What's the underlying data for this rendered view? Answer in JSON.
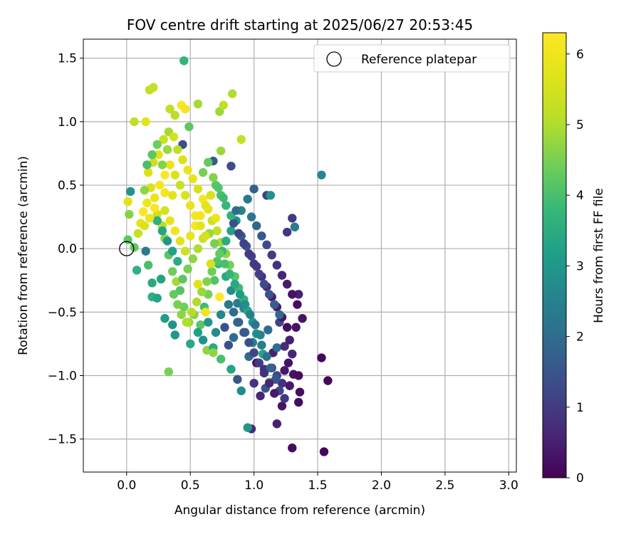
{
  "chart_data": {
    "type": "scatter",
    "title": "FOV centre drift starting at 2025/06/27 20:53:45",
    "xlabel": "Angular distance from reference (arcmin)",
    "ylabel": "Rotation from reference (arcmin)",
    "xlim": [
      -0.34,
      3.06
    ],
    "ylim": [
      -1.76,
      1.65
    ],
    "xticks": [
      0.0,
      0.5,
      1.0,
      1.5,
      2.0,
      2.5,
      3.0
    ],
    "xtick_labels": [
      "0.0",
      "0.5",
      "1.0",
      "1.5",
      "2.0",
      "2.5",
      "3.0"
    ],
    "yticks": [
      -1.5,
      -1.0,
      -0.5,
      0.0,
      0.5,
      1.0,
      1.5
    ],
    "ytick_labels": [
      "−1.5",
      "−1.0",
      "−0.5",
      "0.0",
      "0.5",
      "1.0",
      "1.5"
    ],
    "grid": true,
    "legend": {
      "position": "top-right",
      "entries": [
        "Reference platepar"
      ]
    },
    "reference_point": {
      "x": 0.0,
      "y": 0.0
    },
    "colorbar": {
      "label": "Hours from first FF file",
      "range": [
        0,
        6.3
      ],
      "ticks": [
        0,
        1,
        2,
        3,
        4,
        5,
        6
      ],
      "tick_labels": [
        "0",
        "1",
        "2",
        "3",
        "4",
        "5",
        "6"
      ],
      "colormap": "viridis"
    },
    "points": [
      [
        0.45,
        1.48,
        3.7
      ],
      [
        1.53,
        0.58,
        2.6
      ],
      [
        1.3,
        -1.57,
        0.2
      ],
      [
        1.55,
        -1.6,
        0.1
      ],
      [
        1.58,
        -1.04,
        0.1
      ],
      [
        1.53,
        -0.86,
        0.1
      ],
      [
        1.38,
        -0.55,
        0.3
      ],
      [
        1.35,
        -0.36,
        0.5
      ],
      [
        1.32,
        0.17,
        2.4
      ],
      [
        1.3,
        0.24,
        1.0
      ],
      [
        1.26,
        0.13,
        0.9
      ],
      [
        1.1,
        0.42,
        1.1
      ],
      [
        1.13,
        0.42,
        2.9
      ],
      [
        1.0,
        0.47,
        1.7
      ],
      [
        0.95,
        0.39,
        2.3
      ],
      [
        1.22,
        -1.24,
        0.3
      ],
      [
        1.18,
        -1.38,
        0.5
      ],
      [
        0.98,
        -1.42,
        0.7
      ],
      [
        0.95,
        -1.41,
        3.0
      ],
      [
        1.36,
        -1.13,
        0.2
      ],
      [
        1.35,
        -1.21,
        0.2
      ],
      [
        0.33,
        -0.97,
        4.5
      ],
      [
        0.38,
        -0.68,
        3.0
      ],
      [
        0.36,
        -0.6,
        2.9
      ],
      [
        0.9,
        -1.12,
        2.7
      ],
      [
        0.87,
        -1.03,
        1.5
      ],
      [
        0.82,
        -0.95,
        3.3
      ],
      [
        1.12,
        -1.05,
        4.6
      ],
      [
        0.15,
        1.0,
        5.7
      ],
      [
        0.18,
        1.25,
        5.2
      ],
      [
        0.21,
        1.27,
        5.3
      ],
      [
        0.34,
        1.1,
        5.2
      ],
      [
        0.43,
        1.13,
        6.2
      ],
      [
        0.46,
        1.1,
        6.1
      ],
      [
        0.38,
        1.05,
        5.1
      ],
      [
        0.56,
        1.14,
        4.9
      ],
      [
        0.73,
        1.08,
        4.8
      ],
      [
        0.76,
        1.13,
        5.2
      ],
      [
        0.83,
        1.22,
        5.0
      ],
      [
        0.9,
        0.86,
        5.3
      ],
      [
        0.82,
        0.65,
        1.3
      ],
      [
        0.68,
        0.69,
        1.6
      ],
      [
        0.74,
        0.77,
        4.8
      ],
      [
        0.49,
        0.96,
        4.2
      ],
      [
        0.44,
        0.82,
        1.4
      ],
      [
        0.06,
        1.0,
        5.2
      ],
      [
        0.03,
        0.45,
        2.9
      ],
      [
        0.01,
        0.37,
        5.7
      ],
      [
        0.02,
        0.27,
        4.6
      ],
      [
        0.01,
        0.07,
        4.2
      ],
      [
        0.06,
        0.01,
        4.3
      ],
      [
        0.08,
        -0.17,
        3.6
      ],
      [
        0.15,
        -0.02,
        2.3
      ],
      [
        0.17,
        -0.13,
        4.0
      ],
      [
        0.2,
        -0.27,
        3.4
      ],
      [
        0.2,
        -0.38,
        3.6
      ],
      [
        0.24,
        -0.39,
        3.3
      ],
      [
        0.27,
        -0.24,
        3.3
      ],
      [
        0.3,
        -0.55,
        3.1
      ],
      [
        0.5,
        -0.75,
        3.4
      ],
      [
        0.63,
        -0.8,
        4.7
      ],
      [
        0.68,
        -0.78,
        3.5
      ],
      [
        0.68,
        -0.82,
        4.7
      ],
      [
        0.74,
        -0.87,
        4.0
      ],
      [
        0.77,
        -0.62,
        1.4
      ],
      [
        0.8,
        -0.76,
        1.4
      ],
      [
        0.84,
        -0.7,
        2.0
      ],
      [
        0.87,
        -0.58,
        2.1
      ],
      [
        0.92,
        -0.47,
        2.6
      ],
      [
        0.96,
        -0.85,
        1.9
      ],
      [
        1.02,
        -0.9,
        0.3
      ],
      [
        1.05,
        -0.68,
        2.5
      ],
      [
        1.08,
        -0.95,
        0.8
      ],
      [
        1.11,
        -0.64,
        2.0
      ],
      [
        1.15,
        -0.82,
        0.5
      ],
      [
        1.18,
        -0.78,
        2.0
      ],
      [
        1.2,
        -0.58,
        1.2
      ],
      [
        1.24,
        -0.77,
        0.7
      ],
      [
        1.28,
        -0.72,
        0.5
      ],
      [
        1.33,
        -0.62,
        0.3
      ],
      [
        1.3,
        -0.83,
        0.6
      ],
      [
        1.27,
        -0.9,
        0.3
      ],
      [
        1.24,
        -0.96,
        0.4
      ],
      [
        1.31,
        -0.99,
        0.3
      ],
      [
        1.35,
        -1.0,
        0.2
      ],
      [
        1.28,
        -1.08,
        0.4
      ],
      [
        1.22,
        -1.06,
        0.8
      ],
      [
        1.18,
        -1.0,
        1.2
      ],
      [
        1.14,
        -0.94,
        1.0
      ],
      [
        1.09,
        -1.1,
        1.5
      ],
      [
        1.05,
        -1.16,
        0.6
      ],
      [
        1.0,
        -1.06,
        0.9
      ],
      [
        1.07,
        -0.83,
        3.3
      ],
      [
        0.99,
        -0.74,
        2.4
      ],
      [
        0.93,
        -0.66,
        1.9
      ],
      [
        0.87,
        -0.43,
        2.4
      ],
      [
        0.82,
        -0.33,
        2.8
      ],
      [
        0.78,
        -0.22,
        3.4
      ],
      [
        0.72,
        -0.12,
        3.7
      ],
      [
        0.69,
        -0.25,
        4.1
      ],
      [
        0.64,
        -0.36,
        4.5
      ],
      [
        0.61,
        -0.46,
        3.9
      ],
      [
        0.58,
        -0.6,
        4.2
      ],
      [
        0.53,
        -0.52,
        4.6
      ],
      [
        0.49,
        -0.58,
        4.8
      ],
      [
        0.45,
        -0.46,
        4.4
      ],
      [
        0.42,
        -0.33,
        4.1
      ],
      [
        0.39,
        -0.26,
        4.9
      ],
      [
        0.36,
        -0.18,
        4.4
      ],
      [
        0.33,
        -0.05,
        4.2
      ],
      [
        0.3,
        0.08,
        4.6
      ],
      [
        0.28,
        0.18,
        5.1
      ],
      [
        0.24,
        0.27,
        5.4
      ],
      [
        0.22,
        0.4,
        5.9
      ],
      [
        0.19,
        0.48,
        5.6
      ],
      [
        0.16,
        0.36,
        6.0
      ],
      [
        0.13,
        0.29,
        6.2
      ],
      [
        0.11,
        0.2,
        5.8
      ],
      [
        0.09,
        0.12,
        5.3
      ],
      [
        0.14,
        0.46,
        4.7
      ],
      [
        0.17,
        0.6,
        5.6
      ],
      [
        0.21,
        0.68,
        5.4
      ],
      [
        0.25,
        0.74,
        5.7
      ],
      [
        0.29,
        0.86,
        5.3
      ],
      [
        0.33,
        0.92,
        4.9
      ],
      [
        0.37,
        0.88,
        5.5
      ],
      [
        0.4,
        0.78,
        5.2
      ],
      [
        0.44,
        0.7,
        5.6
      ],
      [
        0.48,
        0.62,
        5.9
      ],
      [
        0.52,
        0.55,
        5.8
      ],
      [
        0.56,
        0.47,
        5.5
      ],
      [
        0.6,
        0.39,
        6.1
      ],
      [
        0.64,
        0.31,
        5.7
      ],
      [
        0.67,
        0.22,
        5.4
      ],
      [
        0.71,
        0.14,
        5.2
      ],
      [
        0.74,
        0.05,
        4.9
      ],
      [
        0.78,
        -0.04,
        4.7
      ],
      [
        0.81,
        -0.13,
        4.5
      ],
      [
        0.85,
        -0.22,
        4.2
      ],
      [
        0.88,
        -0.31,
        3.9
      ],
      [
        0.92,
        -0.4,
        3.6
      ],
      [
        0.95,
        -0.49,
        3.3
      ],
      [
        0.99,
        -0.58,
        3.0
      ],
      [
        1.02,
        -0.67,
        2.7
      ],
      [
        1.06,
        -0.76,
        2.4
      ],
      [
        1.1,
        -0.85,
        2.1
      ],
      [
        1.13,
        -0.94,
        1.8
      ],
      [
        1.17,
        -1.03,
        1.5
      ],
      [
        1.2,
        -1.12,
        1.2
      ],
      [
        1.24,
        -1.18,
        0.9
      ],
      [
        0.98,
        0.25,
        2.2
      ],
      [
        1.02,
        0.18,
        1.9
      ],
      [
        1.06,
        0.1,
        1.6
      ],
      [
        1.1,
        0.03,
        1.3
      ],
      [
        1.14,
        -0.05,
        1.0
      ],
      [
        1.18,
        -0.13,
        0.8
      ],
      [
        1.22,
        -0.21,
        0.6
      ],
      [
        1.26,
        -0.28,
        0.4
      ],
      [
        1.3,
        -0.36,
        0.3
      ],
      [
        1.34,
        -0.44,
        0.2
      ],
      [
        0.9,
        0.3,
        2.6
      ],
      [
        0.86,
        0.22,
        2.9
      ],
      [
        0.82,
        0.14,
        3.2
      ],
      [
        0.78,
        0.06,
        3.5
      ],
      [
        0.75,
        -0.02,
        3.8
      ],
      [
        0.71,
        -0.1,
        4.1
      ],
      [
        0.67,
        -0.18,
        4.4
      ],
      [
        0.63,
        -0.26,
        4.6
      ],
      [
        0.59,
        -0.34,
        4.8
      ],
      [
        0.55,
        -0.42,
        5.0
      ],
      [
        0.51,
        -0.5,
        5.1
      ],
      [
        0.47,
        -0.58,
        5.0
      ],
      [
        0.43,
        -0.52,
        4.7
      ],
      [
        0.4,
        -0.44,
        4.5
      ],
      [
        0.37,
        -0.36,
        4.3
      ],
      [
        0.6,
        0.08,
        5.3
      ],
      [
        0.56,
        0.0,
        5.0
      ],
      [
        0.52,
        -0.08,
        4.7
      ],
      [
        0.48,
        -0.16,
        4.5
      ],
      [
        0.44,
        -0.24,
        4.2
      ],
      [
        0.65,
        0.12,
        4.8
      ],
      [
        0.69,
        0.04,
        4.5
      ],
      [
        0.73,
        -0.04,
        4.3
      ],
      [
        0.77,
        -0.12,
        4.0
      ],
      [
        0.81,
        -0.2,
        3.7
      ],
      [
        0.85,
        -0.28,
        3.4
      ],
      [
        0.89,
        -0.36,
        3.1
      ],
      [
        0.93,
        -0.44,
        2.8
      ],
      [
        0.97,
        -0.52,
        2.5
      ],
      [
        1.01,
        -0.6,
        2.2
      ],
      [
        0.9,
        0.1,
        1.6
      ],
      [
        0.94,
        0.02,
        1.4
      ],
      [
        0.98,
        -0.06,
        1.2
      ],
      [
        1.02,
        -0.14,
        1.0
      ],
      [
        1.06,
        -0.22,
        0.8
      ],
      [
        1.1,
        -0.3,
        0.7
      ],
      [
        1.14,
        -0.38,
        0.5
      ],
      [
        1.18,
        -0.46,
        0.4
      ],
      [
        1.22,
        -0.54,
        0.3
      ],
      [
        1.26,
        -0.62,
        0.2
      ],
      [
        0.84,
        0.2,
        1.4
      ],
      [
        0.88,
        0.12,
        1.2
      ],
      [
        0.92,
        0.04,
        1.1
      ],
      [
        0.96,
        -0.04,
        1.0
      ],
      [
        1.0,
        -0.12,
        0.9
      ],
      [
        1.04,
        -0.2,
        1.1
      ],
      [
        1.08,
        -0.28,
        1.3
      ],
      [
        1.12,
        -0.36,
        1.5
      ],
      [
        1.16,
        -0.44,
        1.7
      ],
      [
        1.2,
        -0.52,
        1.9
      ],
      [
        0.3,
        0.3,
        5.5
      ],
      [
        0.34,
        0.22,
        5.8
      ],
      [
        0.38,
        0.14,
        6.0
      ],
      [
        0.42,
        0.06,
        5.7
      ],
      [
        0.46,
        -0.02,
        5.4
      ],
      [
        0.5,
        0.1,
        5.9
      ],
      [
        0.54,
        0.18,
        6.2
      ],
      [
        0.58,
        0.26,
        6.0
      ],
      [
        0.62,
        0.34,
        5.8
      ],
      [
        0.66,
        0.42,
        5.6
      ],
      [
        0.26,
        0.5,
        6.1
      ],
      [
        0.3,
        0.58,
        6.2
      ],
      [
        0.34,
        0.66,
        5.9
      ],
      [
        0.38,
        0.58,
        5.6
      ],
      [
        0.42,
        0.5,
        5.3
      ],
      [
        0.46,
        0.42,
        5.6
      ],
      [
        0.5,
        0.34,
        5.9
      ],
      [
        0.54,
        0.26,
        6.1
      ],
      [
        0.58,
        0.18,
        5.8
      ],
      [
        0.62,
        0.1,
        5.5
      ],
      [
        0.7,
        0.5,
        4.2
      ],
      [
        0.74,
        0.42,
        4.0
      ],
      [
        0.78,
        0.34,
        3.8
      ],
      [
        0.82,
        0.26,
        3.6
      ],
      [
        0.86,
        0.3,
        2.0
      ],
      [
        0.6,
        0.6,
        4.5
      ],
      [
        0.64,
        0.68,
        4.3
      ],
      [
        0.68,
        0.56,
        4.6
      ],
      [
        0.72,
        0.48,
        4.1
      ],
      [
        0.76,
        0.4,
        3.9
      ],
      [
        0.24,
        0.82,
        4.4
      ],
      [
        0.2,
        0.74,
        4.2
      ],
      [
        0.16,
        0.66,
        4.0
      ],
      [
        0.28,
        0.66,
        4.6
      ],
      [
        0.32,
        0.78,
        4.8
      ],
      [
        0.4,
        -0.1,
        3.5
      ],
      [
        0.36,
        -0.02,
        3.2
      ],
      [
        0.32,
        0.06,
        3.0
      ],
      [
        0.28,
        0.14,
        3.3
      ],
      [
        0.24,
        0.22,
        3.6
      ],
      [
        0.56,
        -0.66,
        3.2
      ],
      [
        0.6,
        -0.72,
        2.9
      ],
      [
        0.64,
        -0.58,
        3.0
      ],
      [
        0.7,
        -0.66,
        2.7
      ],
      [
        0.74,
        -0.52,
        2.6
      ],
      [
        0.8,
        -0.44,
        2.3
      ],
      [
        0.84,
        -0.5,
        2.0
      ],
      [
        0.88,
        -0.58,
        1.8
      ],
      [
        0.92,
        -0.66,
        1.6
      ],
      [
        0.96,
        -0.74,
        1.4
      ],
      [
        1.0,
        -0.82,
        1.2
      ],
      [
        1.04,
        -0.9,
        1.0
      ],
      [
        1.08,
        -0.98,
        0.8
      ],
      [
        1.12,
        -1.06,
        0.6
      ],
      [
        1.16,
        -1.14,
        0.4
      ],
      [
        0.73,
        -0.38,
        6.3
      ],
      [
        0.62,
        -0.5,
        6.0
      ],
      [
        0.56,
        -0.28,
        5.7
      ],
      [
        0.66,
        -0.12,
        5.5
      ],
      [
        0.7,
        0.24,
        5.9
      ],
      [
        0.36,
        0.42,
        5.8
      ],
      [
        0.3,
        0.44,
        6.1
      ],
      [
        0.22,
        0.32,
        6.2
      ],
      [
        0.18,
        0.24,
        5.9
      ],
      [
        0.14,
        0.18,
        5.6
      ]
    ]
  },
  "x_axis_label": "Angular distance from reference (arcmin)",
  "y_axis_label": "Rotation from reference (arcmin)",
  "colorbar_label": "Hours from first FF file"
}
